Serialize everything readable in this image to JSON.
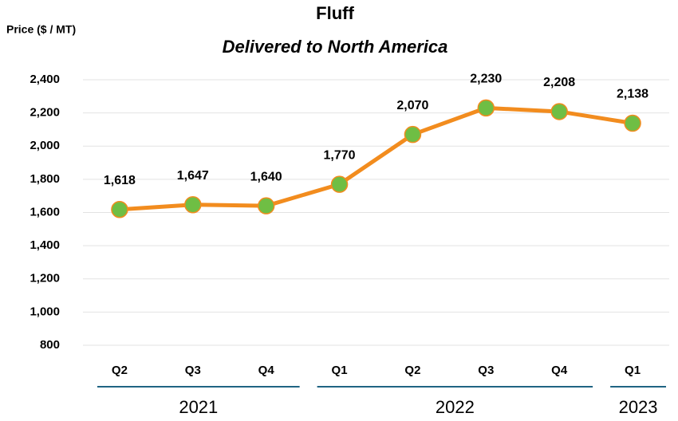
{
  "chart_data": {
    "type": "line",
    "title": "Fluff",
    "subtitle": "Delivered to North America",
    "y_axis_label": "Price ($ / MT)",
    "categories": [
      "Q2",
      "Q3",
      "Q4",
      "Q1",
      "Q2",
      "Q3",
      "Q4",
      "Q1"
    ],
    "groups": [
      {
        "label": "2021",
        "count": 3
      },
      {
        "label": "2022",
        "count": 4
      },
      {
        "label": "2023",
        "count": 1
      }
    ],
    "values": [
      1618,
      1647,
      1640,
      1770,
      2070,
      2230,
      2208,
      2138
    ],
    "value_labels": [
      "1,618",
      "1,647",
      "1,640",
      "1,770",
      "2,070",
      "2,230",
      "2,208",
      "2,138"
    ],
    "color": "#f28c1e",
    "marker_color": "#6fbe44",
    "ylim": [
      800,
      2400
    ],
    "yticks": [
      800,
      {
        "value": 1000,
        "label": "1,000"
      },
      {
        "value": 1200,
        "label": "1,200"
      },
      {
        "value": 1400,
        "label": "1,400"
      },
      {
        "value": 1600,
        "label": "1,600"
      },
      {
        "value": 1800,
        "label": "1,800"
      },
      {
        "value": 2000,
        "label": "2,000"
      },
      {
        "value": 2200,
        "label": "2,200"
      },
      {
        "value": 2400,
        "label": "2,400"
      }
    ],
    "grid": true
  }
}
